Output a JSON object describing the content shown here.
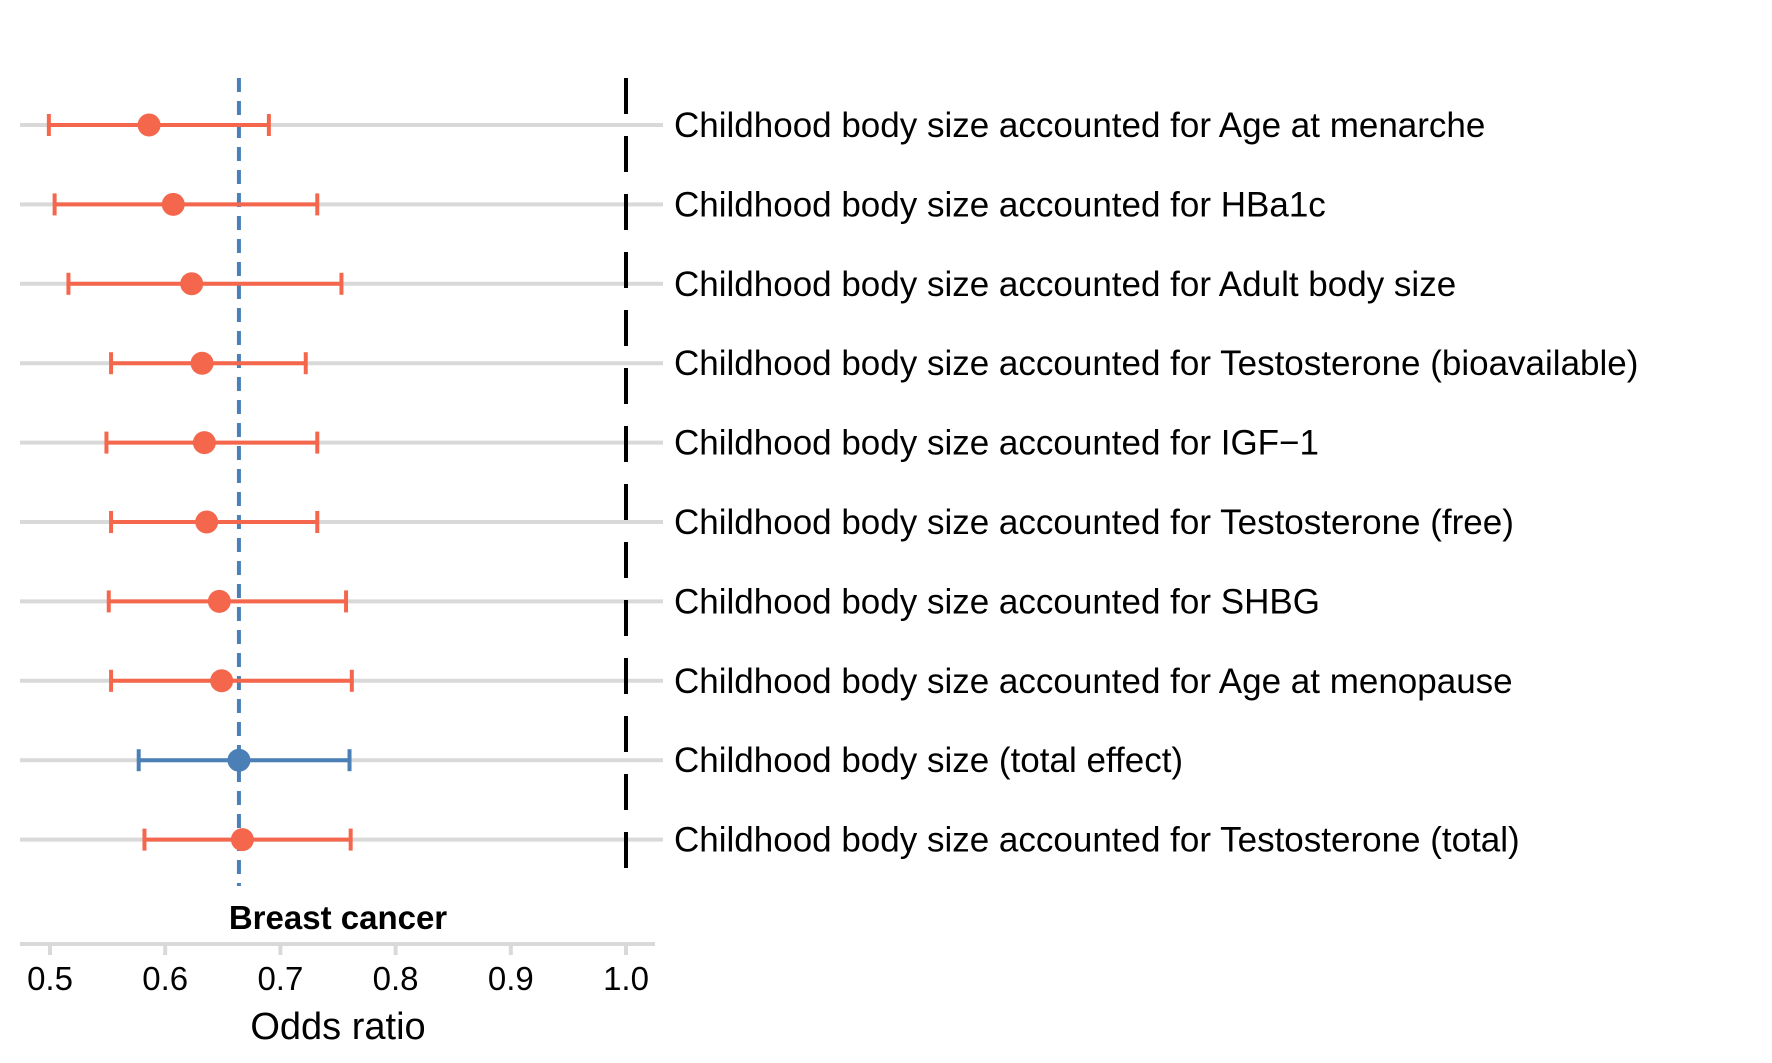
{
  "chart_data": {
    "type": "forest",
    "title": "Breast cancer",
    "xlabel": "Odds ratio",
    "xlim": [
      0.475,
      1.03
    ],
    "x_ticks": [
      0.5,
      0.6,
      0.7,
      0.8,
      0.9,
      1.0
    ],
    "x_tick_labels": [
      "0.5",
      "0.6",
      "0.7",
      "0.8",
      "0.9",
      "1.0"
    ],
    "null_line": 1.0,
    "reference_line": 0.664,
    "colors": {
      "mediated": "#f4674d",
      "total": "#4a80b6",
      "row_line": "#d9d9d9",
      "null_line": "#000000"
    },
    "rows": [
      {
        "label": "Childhood body size accounted for Age at menarche",
        "or": 0.586,
        "lower": 0.499,
        "upper": 0.69,
        "group": "mediated"
      },
      {
        "label": "Childhood body size accounted for HBa1c",
        "or": 0.607,
        "lower": 0.504,
        "upper": 0.732,
        "group": "mediated"
      },
      {
        "label": "Childhood body size accounted for Adult body size",
        "or": 0.623,
        "lower": 0.516,
        "upper": 0.753,
        "group": "mediated"
      },
      {
        "label": "Childhood body size accounted for Testosterone (bioavailable)",
        "or": 0.632,
        "lower": 0.553,
        "upper": 0.722,
        "group": "mediated"
      },
      {
        "label": "Childhood body size accounted for IGF−1",
        "or": 0.634,
        "lower": 0.549,
        "upper": 0.732,
        "group": "mediated"
      },
      {
        "label": "Childhood body size accounted for Testosterone (free)",
        "or": 0.636,
        "lower": 0.553,
        "upper": 0.732,
        "group": "mediated"
      },
      {
        "label": "Childhood body size accounted for SHBG",
        "or": 0.647,
        "lower": 0.551,
        "upper": 0.757,
        "group": "mediated"
      },
      {
        "label": "Childhood body size accounted for Age at menopause",
        "or": 0.649,
        "lower": 0.553,
        "upper": 0.762,
        "group": "mediated"
      },
      {
        "label": "Childhood body size (total effect)",
        "or": 0.664,
        "lower": 0.577,
        "upper": 0.76,
        "group": "total"
      },
      {
        "label": "Childhood body size accounted for Testosterone (total)",
        "or": 0.667,
        "lower": 0.582,
        "upper": 0.761,
        "group": "mediated"
      }
    ]
  }
}
